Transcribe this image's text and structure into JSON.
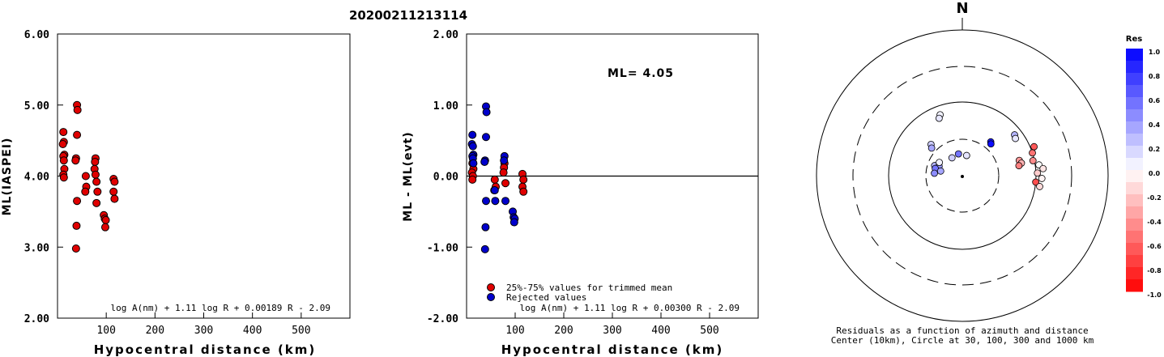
{
  "title": "20200211213114",
  "north_label": "N",
  "chart_data": [
    {
      "type": "scatter",
      "ylabel": "ML(IASPEI)",
      "xlabel": "Hypocentral distance (km)",
      "xlim": [
        0,
        600
      ],
      "ylim": [
        2.0,
        6.0
      ],
      "xticks": [
        "100",
        "200",
        "300",
        "400",
        "500"
      ],
      "yticks": [
        "2.00",
        "3.00",
        "4.00",
        "5.00",
        "6.00"
      ],
      "formula": "log A(nm) + 1.11 log R + 0.00189 R - 2.09",
      "series": [
        {
          "color": "#e00000",
          "points": [
            [
              12,
              4.62
            ],
            [
              13,
              4.48
            ],
            [
              11,
              4.45
            ],
            [
              14,
              4.3
            ],
            [
              12,
              4.28
            ],
            [
              13,
              4.22
            ],
            [
              14,
              4.1
            ],
            [
              12,
              4.02
            ],
            [
              13,
              3.98
            ],
            [
              40,
              5.0
            ],
            [
              41,
              4.93
            ],
            [
              40,
              4.58
            ],
            [
              38,
              4.25
            ],
            [
              37,
              4.22
            ],
            [
              40,
              3.65
            ],
            [
              39,
              3.3
            ],
            [
              38,
              2.98
            ],
            [
              58,
              4.0
            ],
            [
              59,
              3.85
            ],
            [
              57,
              3.78
            ],
            [
              78,
              4.25
            ],
            [
              77,
              4.2
            ],
            [
              76,
              4.1
            ],
            [
              78,
              4.02
            ],
            [
              80,
              3.92
            ],
            [
              82,
              3.78
            ],
            [
              80,
              3.62
            ],
            [
              95,
              3.45
            ],
            [
              97,
              3.4
            ],
            [
              99,
              3.38
            ],
            [
              98,
              3.28
            ],
            [
              115,
              3.96
            ],
            [
              117,
              3.92
            ],
            [
              115,
              3.78
            ],
            [
              117,
              3.68
            ]
          ]
        }
      ]
    },
    {
      "type": "scatter",
      "ylabel": "ML - ML(evt)",
      "xlabel": "Hypocentral distance (km)",
      "xlim": [
        0,
        600
      ],
      "ylim": [
        -2.0,
        2.0
      ],
      "xticks": [
        "100",
        "200",
        "300",
        "400",
        "500"
      ],
      "yticks": [
        "-2.00",
        "-1.00",
        "0.00",
        "1.00",
        "2.00"
      ],
      "ml_label": "ML= 4.05",
      "formula": "log A(nm) + 1.11 log R + 0.00300 R - 2.09",
      "series": [
        {
          "name": "25%-75% values for trimmed mean",
          "color": "#e00000",
          "points": [
            [
              12,
              0.18
            ],
            [
              14,
              0.1
            ],
            [
              11,
              0.05
            ],
            [
              13,
              0.0
            ],
            [
              12,
              -0.05
            ],
            [
              58,
              -0.05
            ],
            [
              60,
              -0.15
            ],
            [
              57,
              -0.2
            ],
            [
              78,
              0.18
            ],
            [
              77,
              0.12
            ],
            [
              76,
              0.05
            ],
            [
              80,
              -0.1
            ],
            [
              115,
              0.03
            ],
            [
              117,
              -0.05
            ],
            [
              115,
              -0.15
            ],
            [
              117,
              -0.22
            ]
          ]
        },
        {
          "name": "Rejected values",
          "color": "#0000cc",
          "points": [
            [
              12,
              0.58
            ],
            [
              11,
              0.45
            ],
            [
              13,
              0.42
            ],
            [
              14,
              0.3
            ],
            [
              12,
              0.28
            ],
            [
              13,
              0.25
            ],
            [
              14,
              0.18
            ],
            [
              40,
              0.98
            ],
            [
              41,
              0.9
            ],
            [
              40,
              0.55
            ],
            [
              38,
              0.22
            ],
            [
              37,
              0.2
            ],
            [
              40,
              -0.35
            ],
            [
              39,
              -0.72
            ],
            [
              38,
              -1.03
            ],
            [
              58,
              -0.2
            ],
            [
              59,
              -0.35
            ],
            [
              78,
              0.28
            ],
            [
              77,
              0.22
            ],
            [
              80,
              -0.35
            ],
            [
              95,
              -0.5
            ],
            [
              97,
              -0.58
            ],
            [
              99,
              -0.6
            ],
            [
              98,
              -0.65
            ]
          ]
        }
      ],
      "reference_line_y": 0.0
    },
    {
      "type": "scatter",
      "subtype": "polar-residuals",
      "caption_line1": "Residuals as a function of azimuth and distance",
      "caption_line2": "Center (10km), Circle at 30, 100, 300 and 1000 km",
      "colorbar": {
        "title": "Res",
        "ticks": [
          "1.0",
          "0.8",
          "0.6",
          "0.4",
          "0.2",
          "0.0",
          "-0.2",
          "-0.4",
          "-0.6",
          "-0.8",
          "-1.0"
        ]
      },
      "points": [
        {
          "az": 340,
          "dist": 88,
          "res": 0.05
        },
        {
          "az": 338,
          "dist": 84,
          "res": 0.1
        },
        {
          "az": 315,
          "dist": 60,
          "res": 0.2
        },
        {
          "az": 312,
          "dist": 56,
          "res": 0.35
        },
        {
          "az": 290,
          "dist": 40,
          "res": 0.3
        },
        {
          "az": 292,
          "dist": 34,
          "res": 0.4
        },
        {
          "az": 300,
          "dist": 36,
          "res": 0.05
        },
        {
          "az": 285,
          "dist": 38,
          "res": 0.55
        },
        {
          "az": 275,
          "dist": 38,
          "res": 0.45
        },
        {
          "az": 282,
          "dist": 30,
          "res": 0.35
        },
        {
          "az": 330,
          "dist": 28,
          "res": 0.2
        },
        {
          "az": 350,
          "dist": 30,
          "res": 0.55
        },
        {
          "az": 12,
          "dist": 28,
          "res": 0.1
        },
        {
          "az": 40,
          "dist": 60,
          "res": 0.9
        },
        {
          "az": 42,
          "dist": 58,
          "res": 0.95
        },
        {
          "az": 52,
          "dist": 90,
          "res": 0.3
        },
        {
          "az": 55,
          "dist": 88,
          "res": 0.1
        },
        {
          "az": 75,
          "dist": 80,
          "res": -0.4
        },
        {
          "az": 78,
          "dist": 82,
          "res": -0.3
        },
        {
          "az": 80,
          "dist": 78,
          "res": -0.5
        },
        {
          "az": 72,
          "dist": 100,
          "res": -0.55
        },
        {
          "az": 68,
          "dist": 105,
          "res": -0.65
        },
        {
          "az": 78,
          "dist": 98,
          "res": -0.45
        },
        {
          "az": 82,
          "dist": 105,
          "res": 0.0
        },
        {
          "az": 85,
          "dist": 110,
          "res": -0.1
        },
        {
          "az": 88,
          "dist": 102,
          "res": -0.2
        },
        {
          "az": 92,
          "dist": 108,
          "res": -0.05
        },
        {
          "az": 95,
          "dist": 100,
          "res": -0.7
        },
        {
          "az": 98,
          "dist": 106,
          "res": -0.15
        }
      ]
    }
  ]
}
